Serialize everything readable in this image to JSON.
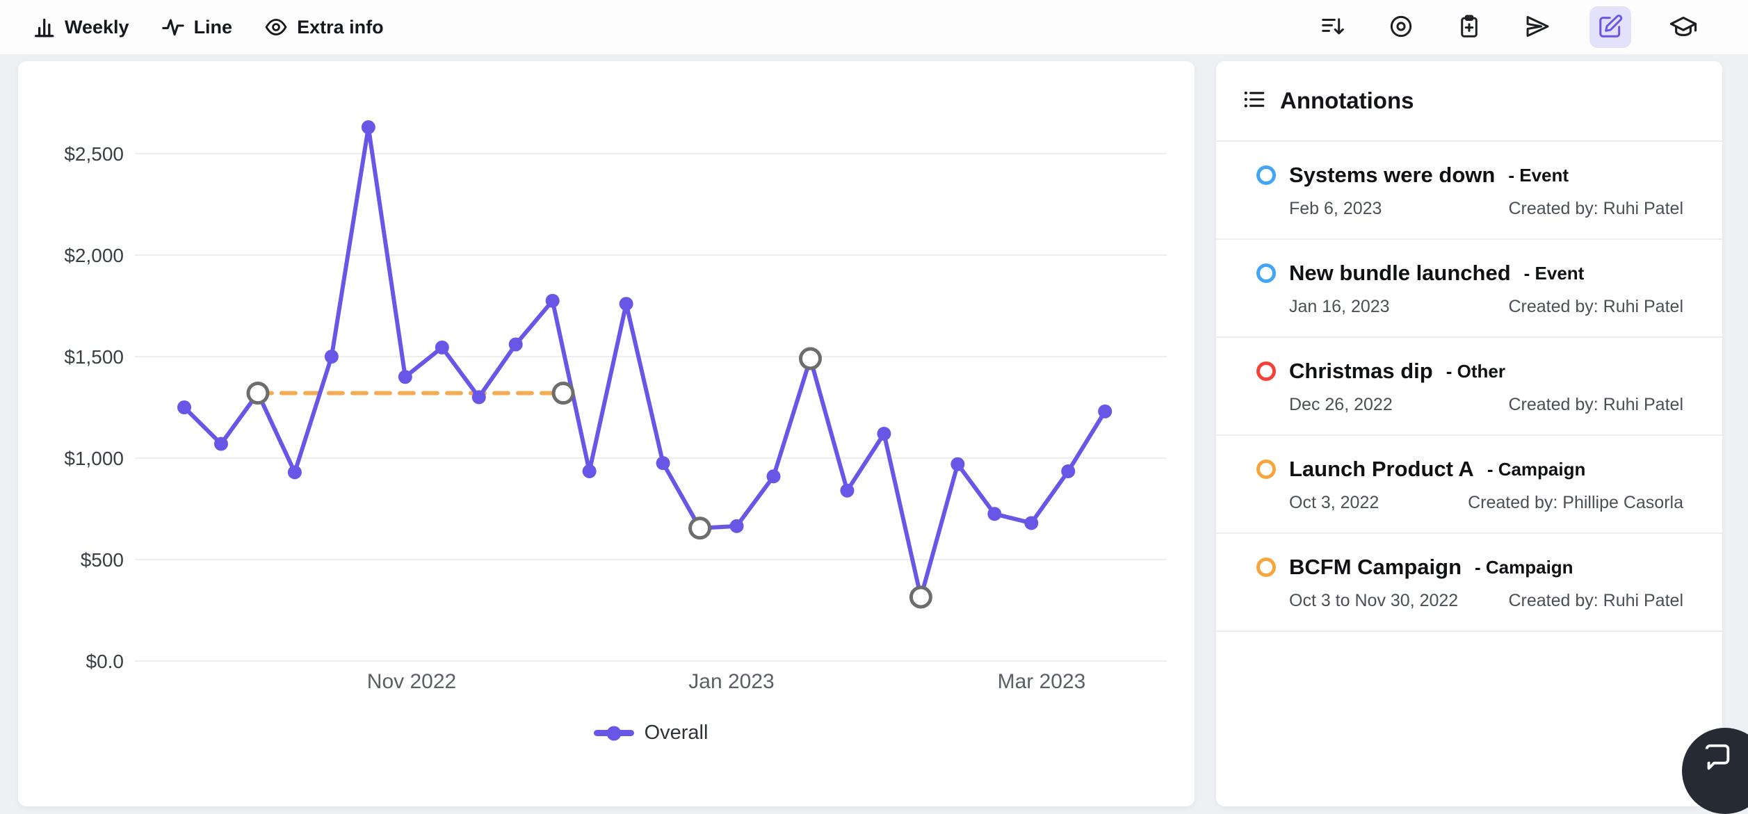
{
  "toolbar": {
    "left_items": [
      {
        "label": "Weekly",
        "icon": "bar-chart-icon"
      },
      {
        "label": "Line",
        "icon": "pulse-line-icon"
      },
      {
        "label": "Extra info",
        "icon": "eye-icon"
      }
    ],
    "right_icons": [
      "sort-descending",
      "target",
      "clipboard-add",
      "send",
      "edit",
      "graduation-cap"
    ],
    "active_right_icon": "edit",
    "accent_color": "#6856e7",
    "active_icon_bg": "#e4e1fb"
  },
  "chart_data": {
    "type": "line",
    "title": "",
    "x": [
      "Sep 19, 2022",
      "Sep 26, 2022",
      "Oct 3, 2022",
      "Oct 10, 2022",
      "Oct 17, 2022",
      "Oct 24, 2022",
      "Oct 31, 2022",
      "Nov 7, 2022",
      "Nov 14, 2022",
      "Nov 21, 2022",
      "Nov 28, 2022",
      "Dec 5, 2022",
      "Dec 12, 2022",
      "Dec 19, 2022",
      "Dec 26, 2022",
      "Jan 2, 2023",
      "Jan 9, 2023",
      "Jan 16, 2023",
      "Jan 23, 2023",
      "Jan 30, 2023",
      "Feb 6, 2023",
      "Feb 13, 2023",
      "Feb 20, 2023",
      "Feb 27, 2023",
      "Mar 6, 2023",
      "Mar 13, 2023"
    ],
    "series": [
      {
        "name": "Overall",
        "color": "#6856e7",
        "values": [
          1250,
          1070,
          1320,
          930,
          1500,
          2630,
          1400,
          1545,
          1300,
          1560,
          1775,
          935,
          1760,
          975,
          655,
          665,
          910,
          1490,
          840,
          1120,
          315,
          970,
          725,
          680,
          935,
          1230
        ]
      }
    ],
    "y_ticks": [
      "$2,500",
      "$2,000",
      "$1,500",
      "$1,000",
      "$500",
      "$0.0"
    ],
    "y_tick_values": [
      2500,
      2000,
      1500,
      1000,
      500,
      0
    ],
    "x_tick_labels": [
      "Nov 2022",
      "Jan 2023",
      "Mar 2023"
    ],
    "ylim": [
      0,
      2750
    ],
    "grid": true,
    "legend_position": "bottom",
    "annotations": {
      "range": {
        "label": "BCFM Campaign",
        "from": "Oct 3, 2022",
        "to": "Nov 30, 2022",
        "value": 1320,
        "start_index": 2,
        "end_index": 10.29,
        "color": "#f3ab55",
        "marker_color": "#6d6d6d"
      },
      "points": [
        {
          "index": 2,
          "date": "Oct 3, 2022",
          "label": "Launch Product A",
          "marker_color": "#6d6d6d"
        },
        {
          "index": 14,
          "date": "Dec 26, 2022",
          "label": "Christmas dip",
          "marker_color": "#6d6d6d"
        },
        {
          "index": 17,
          "date": "Jan 16, 2023",
          "label": "New bundle launched",
          "marker_color": "#6d6d6d"
        },
        {
          "index": 20,
          "date": "Feb 6, 2023",
          "label": "Systems were down",
          "marker_color": "#6d6d6d"
        }
      ]
    }
  },
  "annotations_panel": {
    "title": "Annotations",
    "items": [
      {
        "title": "Systems were down",
        "type": "Event",
        "date": "Feb 6, 2023",
        "created_by": "Created by: Ruhi Patel",
        "color": "#42a5f5"
      },
      {
        "title": "New bundle launched",
        "type": "Event",
        "date": "Jan 16, 2023",
        "created_by": "Created by: Ruhi Patel",
        "color": "#42a5f5"
      },
      {
        "title": "Christmas dip",
        "type": "Other",
        "date": "Dec 26, 2022",
        "created_by": "Created by: Ruhi Patel",
        "color": "#f44336"
      },
      {
        "title": "Launch Product A",
        "type": "Campaign",
        "date": "Oct 3, 2022",
        "created_by": "Created by: Phillipe Casorla",
        "color": "#f6a63c"
      },
      {
        "title": "BCFM Campaign",
        "type": "Campaign",
        "date": "Oct 3 to Nov 30, 2022",
        "created_by": "Created by: Ruhi Patel",
        "color": "#f6a63c"
      }
    ]
  }
}
